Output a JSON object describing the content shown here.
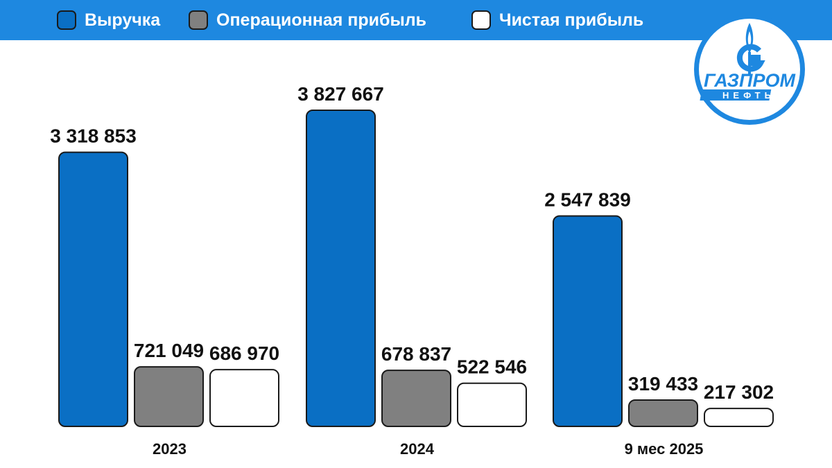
{
  "legend": {
    "items": [
      {
        "label": "Выручка",
        "color": "#0a6fc4"
      },
      {
        "label": "Операционная прибыль",
        "color": "#808080"
      },
      {
        "label": "Чистая прибыль",
        "color": "#ffffff"
      }
    ]
  },
  "logo": {
    "line1": "ГАЗПРОМ",
    "line2": "НЕФТЬ"
  },
  "chart_data": {
    "type": "bar",
    "categories": [
      "2023",
      "2024",
      "9 мес 2025"
    ],
    "series": [
      {
        "name": "Выручка",
        "values": [
          3318853,
          3827667,
          2547839
        ],
        "labels": [
          "3 318 853",
          "3 827 667",
          "2 547 839"
        ],
        "color": "#0a6fc4"
      },
      {
        "name": "Операционная прибыль",
        "values": [
          721049,
          678837,
          319433
        ],
        "labels": [
          "721 049",
          "678 837",
          "319 433"
        ],
        "color": "#808080"
      },
      {
        "name": "Чистая прибыль",
        "values": [
          686970,
          522546,
          217302
        ],
        "labels": [
          "686 970",
          "522 546",
          "217 302"
        ],
        "color": "#ffffff"
      }
    ],
    "title": "",
    "xlabel": "",
    "ylabel": "",
    "ylim": [
      0,
      3827667
    ],
    "grid": false,
    "legend_position": "top"
  }
}
